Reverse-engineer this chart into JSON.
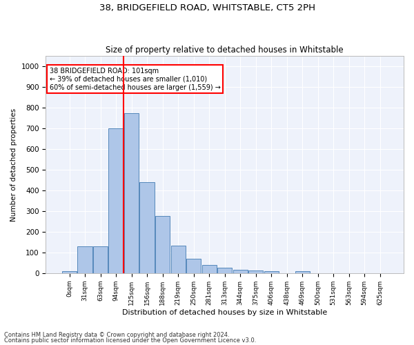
{
  "title1": "38, BRIDGEFIELD ROAD, WHITSTABLE, CT5 2PH",
  "title2": "Size of property relative to detached houses in Whitstable",
  "xlabel": "Distribution of detached houses by size in Whitstable",
  "ylabel": "Number of detached properties",
  "footnote1": "Contains HM Land Registry data © Crown copyright and database right 2024.",
  "footnote2": "Contains public sector information licensed under the Open Government Licence v3.0.",
  "bin_labels": [
    "0sqm",
    "31sqm",
    "63sqm",
    "94sqm",
    "125sqm",
    "156sqm",
    "188sqm",
    "219sqm",
    "250sqm",
    "281sqm",
    "313sqm",
    "344sqm",
    "375sqm",
    "406sqm",
    "438sqm",
    "469sqm",
    "500sqm",
    "531sqm",
    "563sqm",
    "594sqm",
    "625sqm"
  ],
  "bar_values": [
    8,
    128,
    128,
    700,
    775,
    440,
    275,
    133,
    68,
    40,
    25,
    15,
    12,
    8,
    0,
    10,
    0,
    0,
    0,
    0,
    0
  ],
  "bar_color": "#aec6e8",
  "bar_edge_color": "#5588bb",
  "vline_color": "red",
  "annotation_text": "38 BRIDGEFIELD ROAD: 101sqm\n← 39% of detached houses are smaller (1,010)\n60% of semi-detached houses are larger (1,559) →",
  "annotation_box_color": "white",
  "annotation_box_edge": "red",
  "ylim": [
    0,
    1050
  ],
  "yticks": [
    0,
    100,
    200,
    300,
    400,
    500,
    600,
    700,
    800,
    900,
    1000
  ],
  "plot_bg_color": "#eef2fb"
}
